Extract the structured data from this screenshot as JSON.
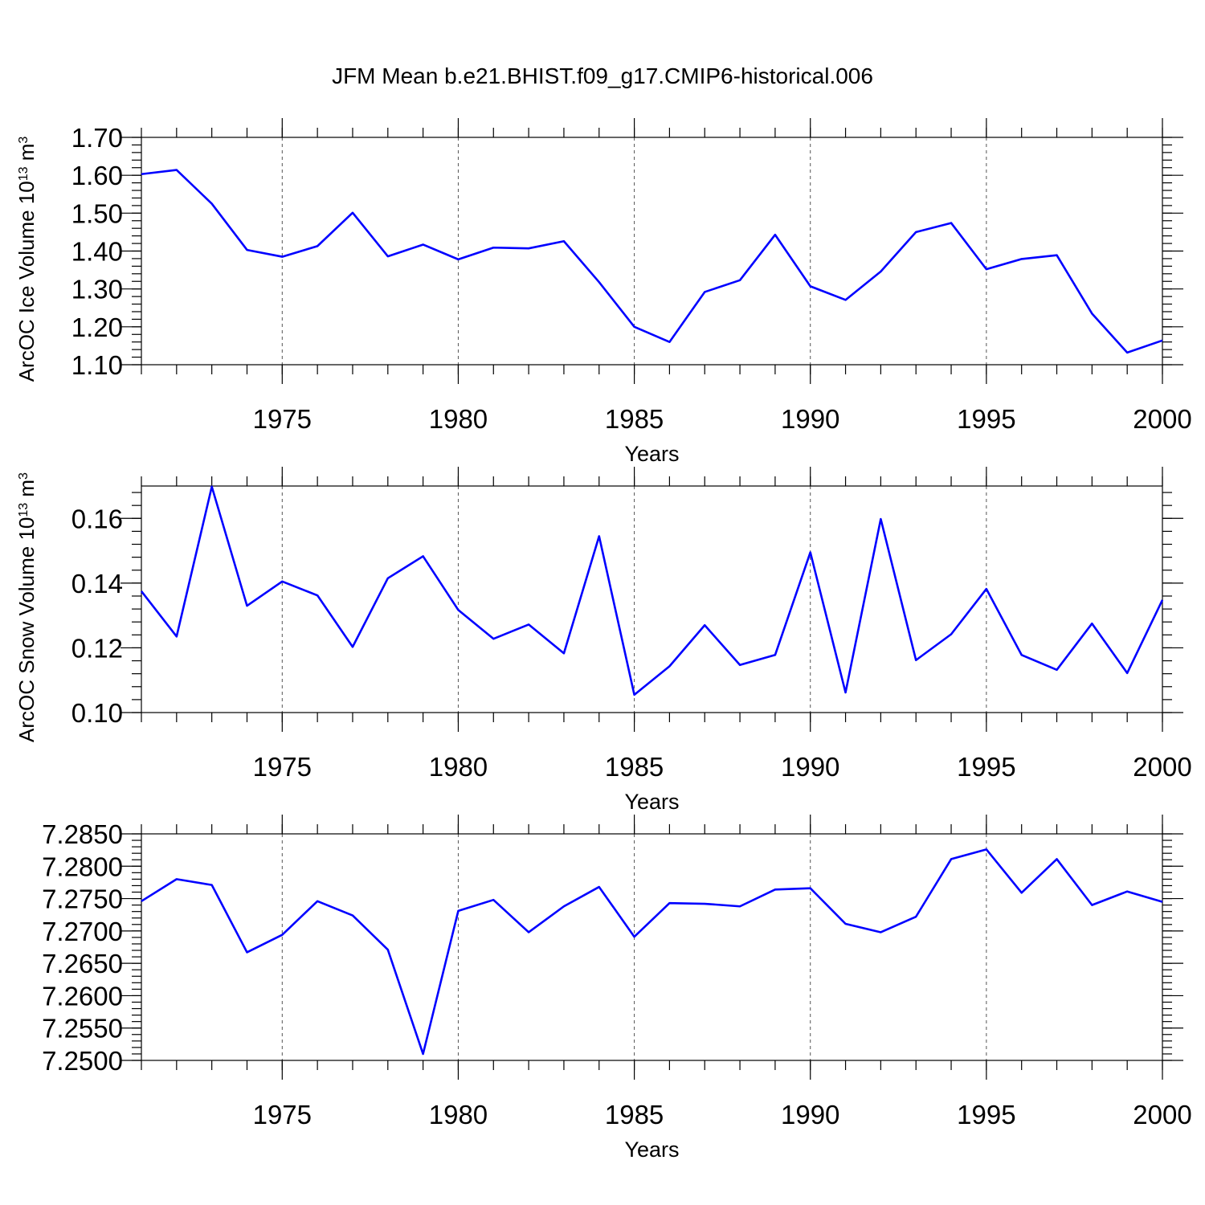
{
  "title": "JFM Mean b.e21.BHIST.f09_g17.CMIP6-historical.006",
  "colors": {
    "line": "#0000ff",
    "axis": "#000000",
    "grid": "#555555"
  },
  "chart_data": [
    {
      "type": "line",
      "ylabel": "ArcOC Ice Volume 10",
      "ylabel_exponent": "13",
      "ylabel_unit": " m",
      "ylabel_unit_exponent": "3",
      "xlabel": "Years",
      "xlim": [
        1971,
        2000
      ],
      "ylim": [
        1.1,
        1.7
      ],
      "yticks": [
        "1.10",
        "1.20",
        "1.30",
        "1.40",
        "1.50",
        "1.60",
        "1.70"
      ],
      "ytick_values": [
        1.1,
        1.2,
        1.3,
        1.4,
        1.5,
        1.6,
        1.7
      ],
      "xticks": [
        "1975",
        "1980",
        "1985",
        "1990",
        "1995",
        "2000"
      ],
      "xtick_values": [
        1975,
        1980,
        1985,
        1990,
        1995,
        2000
      ],
      "x": [
        1971,
        1972,
        1973,
        1974,
        1975,
        1976,
        1977,
        1978,
        1979,
        1980,
        1981,
        1982,
        1983,
        1984,
        1985,
        1986,
        1987,
        1988,
        1989,
        1990,
        1991,
        1992,
        1993,
        1994,
        1995,
        1996,
        1997,
        1998,
        1999,
        2000
      ],
      "values": [
        1.603,
        1.614,
        1.525,
        1.403,
        1.385,
        1.413,
        1.501,
        1.386,
        1.417,
        1.378,
        1.409,
        1.407,
        1.426,
        1.318,
        1.2,
        1.16,
        1.292,
        1.323,
        1.443,
        1.307,
        1.271,
        1.346,
        1.45,
        1.474,
        1.352,
        1.379,
        1.389,
        1.235,
        1.132,
        1.164
      ]
    },
    {
      "type": "line",
      "ylabel": "ArcOC Snow Volume 10",
      "ylabel_exponent": "13",
      "ylabel_unit": " m",
      "ylabel_unit_exponent": "3",
      "xlabel": "Years",
      "xlim": [
        1971,
        2000
      ],
      "ylim": [
        0.1,
        0.17
      ],
      "yticks": [
        "0.10",
        "0.12",
        "0.14",
        "0.16"
      ],
      "ytick_values": [
        0.1,
        0.12,
        0.14,
        0.16
      ],
      "xticks": [
        "1975",
        "1980",
        "1985",
        "1990",
        "1995",
        "2000"
      ],
      "xtick_values": [
        1975,
        1980,
        1985,
        1990,
        1995,
        2000
      ],
      "x": [
        1971,
        1972,
        1973,
        1974,
        1975,
        1976,
        1977,
        1978,
        1979,
        1980,
        1981,
        1982,
        1983,
        1984,
        1985,
        1986,
        1987,
        1988,
        1989,
        1990,
        1991,
        1992,
        1993,
        1994,
        1995,
        1996,
        1997,
        1998,
        1999,
        2000
      ],
      "values": [
        0.1375,
        0.1235,
        0.1698,
        0.133,
        0.1405,
        0.1362,
        0.1203,
        0.1415,
        0.1483,
        0.1317,
        0.1228,
        0.1272,
        0.1183,
        0.1545,
        0.1055,
        0.1143,
        0.127,
        0.1147,
        0.1178,
        0.1495,
        0.1062,
        0.1598,
        0.1162,
        0.1242,
        0.1382,
        0.1178,
        0.1132,
        0.1275,
        0.1122,
        0.1348
      ]
    },
    {
      "type": "line",
      "ylabel": "",
      "xlabel": "Years",
      "xlim": [
        1971,
        2000
      ],
      "ylim": [
        7.25,
        7.285
      ],
      "yticks": [
        "7.2500",
        "7.2550",
        "7.2600",
        "7.2650",
        "7.2700",
        "7.2750",
        "7.2800",
        "7.2850"
      ],
      "ytick_values": [
        7.25,
        7.255,
        7.26,
        7.265,
        7.27,
        7.275,
        7.28,
        7.285
      ],
      "xticks": [
        "1975",
        "1980",
        "1985",
        "1990",
        "1995",
        "2000"
      ],
      "xtick_values": [
        1975,
        1980,
        1985,
        1990,
        1995,
        2000
      ],
      "x": [
        1971,
        1972,
        1973,
        1974,
        1975,
        1976,
        1977,
        1978,
        1979,
        1980,
        1981,
        1982,
        1983,
        1984,
        1985,
        1986,
        1987,
        1988,
        1989,
        1990,
        1991,
        1992,
        1993,
        1994,
        1995,
        1996,
        1997,
        1998,
        1999,
        2000
      ],
      "values": [
        7.2746,
        7.278,
        7.2771,
        7.2667,
        7.2694,
        7.2746,
        7.2724,
        7.2671,
        7.251,
        7.2731,
        7.2748,
        7.2698,
        7.2738,
        7.2768,
        7.2691,
        7.2743,
        7.2742,
        7.2738,
        7.2764,
        7.2766,
        7.2711,
        7.2698,
        7.2722,
        7.2811,
        7.2826,
        7.2759,
        7.2811,
        7.274,
        7.2761,
        7.2745
      ]
    }
  ]
}
